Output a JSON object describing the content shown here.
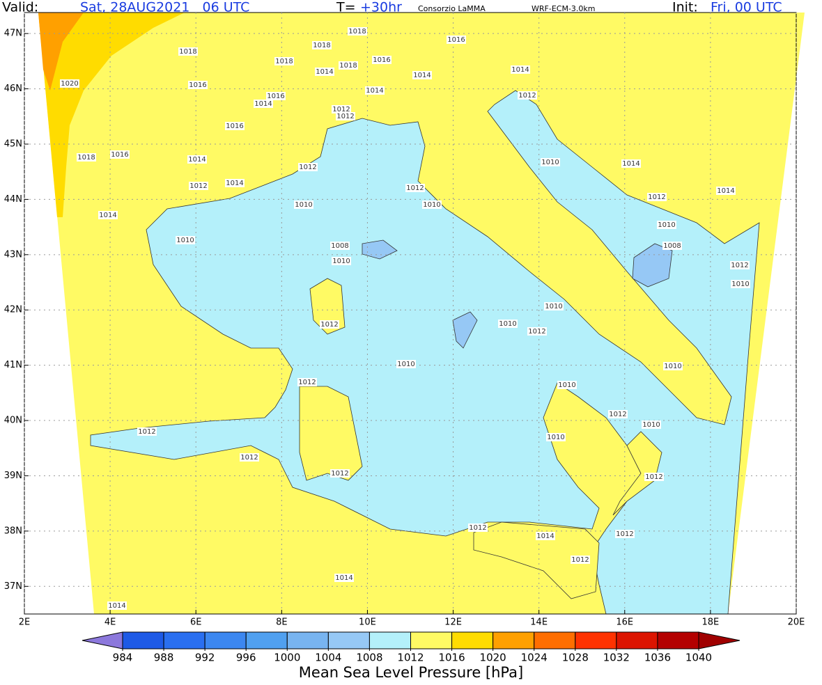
{
  "header": {
    "valid_label": "Valid:",
    "valid_time": "Sat, 28AUG2021   06 UTC",
    "forecast_label": "T=",
    "forecast_hour": "+30hr",
    "provider": "Consorzio LaMMA",
    "model": "WRF-ECM-3.0km",
    "init_label": "Init:",
    "init_time": "Fri, 00 UTC"
  },
  "map": {
    "lonlim": [
      2,
      20
    ],
    "latlim": [
      36.5,
      47.38
    ],
    "grid": true,
    "lon_ticks": [
      {
        "value": 2,
        "label": "2E"
      },
      {
        "value": 4,
        "label": "4E"
      },
      {
        "value": 6,
        "label": "6E"
      },
      {
        "value": 8,
        "label": "8E"
      },
      {
        "value": 10,
        "label": "10E"
      },
      {
        "value": 12,
        "label": "12E"
      },
      {
        "value": 14,
        "label": "14E"
      },
      {
        "value": 16,
        "label": "16E"
      },
      {
        "value": 18,
        "label": "18E"
      },
      {
        "value": 20,
        "label": "20E"
      }
    ],
    "lat_ticks": [
      {
        "value": 37,
        "label": "37N"
      },
      {
        "value": 38,
        "label": "38N"
      },
      {
        "value": 39,
        "label": "39N"
      },
      {
        "value": 40,
        "label": "40N"
      },
      {
        "value": 41,
        "label": "41N"
      },
      {
        "value": 42,
        "label": "42N"
      },
      {
        "value": 43,
        "label": "43N"
      },
      {
        "value": 44,
        "label": "44N"
      },
      {
        "value": 45,
        "label": "45N"
      },
      {
        "value": 46,
        "label": "46N"
      },
      {
        "value": 47,
        "label": "47N"
      }
    ],
    "contour_labels": [
      "1018",
      "1016",
      "1018",
      "1018",
      "1018",
      "1016",
      "1018",
      "1014",
      "1014",
      "1014",
      "1020",
      "1016",
      "1014",
      "1012",
      "1016",
      "1014",
      "1012",
      "1012",
      "1016",
      "1018",
      "1016",
      "1014",
      "1012",
      "1010",
      "1014",
      "1012",
      "1014",
      "1012",
      "1014",
      "1012",
      "1010",
      "1010",
      "1014",
      "1010",
      "1010",
      "1008",
      "1008",
      "1010",
      "1012",
      "1010",
      "1010",
      "1010",
      "1012",
      "1012",
      "1010",
      "1010",
      "1012",
      "1010",
      "1012",
      "1010",
      "1010",
      "1012",
      "1012",
      "1012",
      "1012",
      "1012",
      "1014",
      "1012",
      "1012",
      "1014",
      "1014"
    ]
  },
  "colorbar": {
    "title": "Mean Sea Level Pressure [hPa]",
    "levels": [
      984,
      988,
      992,
      996,
      1000,
      1004,
      1008,
      1012,
      1016,
      1020,
      1024,
      1028,
      1032,
      1036,
      1040
    ],
    "colors": [
      "#1e5ae6",
      "#2a6ff0",
      "#3c87f0",
      "#50a0f0",
      "#78b4f0",
      "#96c8f5",
      "#b4f0fa",
      "#fffa64",
      "#ffdc00",
      "#ffa000",
      "#ff6e00",
      "#ff3200",
      "#dc1400",
      "#b40000"
    ],
    "under_color": "#8c78dc",
    "over_color": "#a00000"
  }
}
